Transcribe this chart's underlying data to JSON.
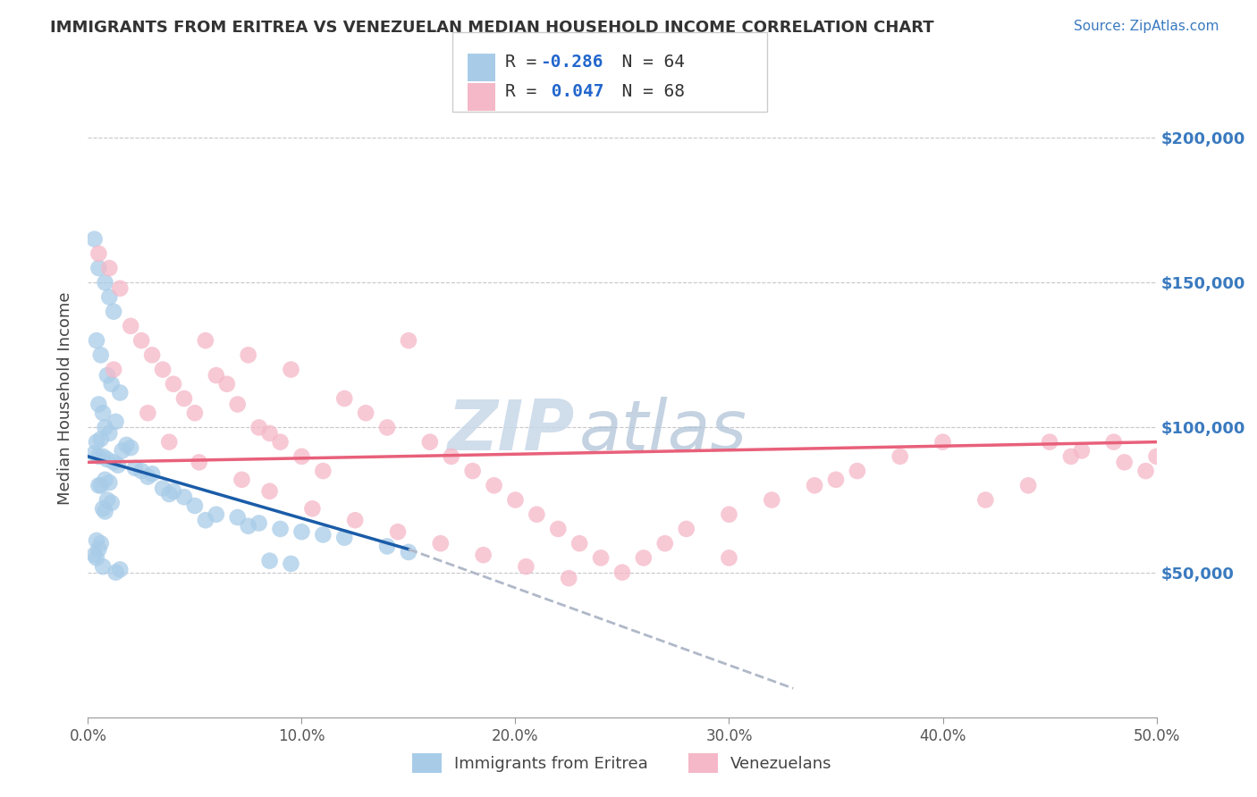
{
  "title": "IMMIGRANTS FROM ERITREA VS VENEZUELAN MEDIAN HOUSEHOLD INCOME CORRELATION CHART",
  "source": "Source: ZipAtlas.com",
  "ylabel": "Median Household Income",
  "watermark_zip": "ZIP",
  "watermark_atlas": "atlas",
  "blue_color": "#a8cce8",
  "pink_color": "#f5b8c8",
  "blue_line_color": "#1a5ca8",
  "pink_line_color": "#e8607a",
  "dashed_line_color": "#b0b8c8",
  "legend_entry1_r": "R = -0.286",
  "legend_entry1_n": "N = 64",
  "legend_entry2_r": "R =  0.047",
  "legend_entry2_n": "N = 68",
  "blue_scatter_x": [
    0.3,
    0.5,
    0.8,
    1.0,
    1.2,
    0.4,
    0.6,
    0.9,
    1.1,
    1.5,
    0.5,
    0.7,
    1.3,
    0.8,
    1.0,
    0.6,
    0.4,
    1.8,
    2.0,
    1.6,
    0.3,
    0.5,
    0.7,
    0.9,
    1.2,
    1.4,
    2.2,
    2.5,
    3.0,
    2.8,
    0.8,
    1.0,
    0.6,
    0.5,
    3.5,
    4.0,
    3.8,
    4.5,
    0.9,
    1.1,
    5.0,
    0.7,
    0.8,
    6.0,
    7.0,
    5.5,
    8.0,
    7.5,
    9.0,
    10.0,
    11.0,
    12.0,
    0.4,
    0.6,
    14.0,
    0.5,
    15.0,
    0.3,
    0.4,
    8.5,
    9.5,
    0.7,
    1.5,
    1.3
  ],
  "blue_scatter_y": [
    165000,
    155000,
    150000,
    145000,
    140000,
    130000,
    125000,
    118000,
    115000,
    112000,
    108000,
    105000,
    102000,
    100000,
    98000,
    96000,
    95000,
    94000,
    93000,
    92000,
    91000,
    90000,
    90000,
    89000,
    88000,
    87000,
    86000,
    85000,
    84000,
    83000,
    82000,
    81000,
    80000,
    80000,
    79000,
    78000,
    77000,
    76000,
    75000,
    74000,
    73000,
    72000,
    71000,
    70000,
    69000,
    68000,
    67000,
    66000,
    65000,
    64000,
    63000,
    62000,
    61000,
    60000,
    59000,
    58000,
    57000,
    56000,
    55000,
    54000,
    53000,
    52000,
    51000,
    50000
  ],
  "pink_scatter_x": [
    0.5,
    1.0,
    1.5,
    2.0,
    2.5,
    3.0,
    3.5,
    4.0,
    4.5,
    5.0,
    5.5,
    6.0,
    6.5,
    7.0,
    7.5,
    8.0,
    8.5,
    9.0,
    9.5,
    10.0,
    11.0,
    12.0,
    13.0,
    14.0,
    15.0,
    16.0,
    17.0,
    18.0,
    19.0,
    20.0,
    21.0,
    22.0,
    23.0,
    24.0,
    25.0,
    26.0,
    27.0,
    28.0,
    30.0,
    32.0,
    34.0,
    36.0,
    38.0,
    40.0,
    42.0,
    44.0,
    46.0,
    48.0,
    50.0,
    1.2,
    2.8,
    3.8,
    5.2,
    7.2,
    8.5,
    10.5,
    12.5,
    14.5,
    16.5,
    18.5,
    20.5,
    22.5,
    30.0,
    45.0,
    46.5,
    48.5,
    49.5,
    35.0
  ],
  "pink_scatter_y": [
    160000,
    155000,
    148000,
    135000,
    130000,
    125000,
    120000,
    115000,
    110000,
    105000,
    130000,
    118000,
    115000,
    108000,
    125000,
    100000,
    98000,
    95000,
    120000,
    90000,
    85000,
    110000,
    105000,
    100000,
    130000,
    95000,
    90000,
    85000,
    80000,
    75000,
    70000,
    65000,
    60000,
    55000,
    50000,
    55000,
    60000,
    65000,
    70000,
    75000,
    80000,
    85000,
    90000,
    95000,
    75000,
    80000,
    90000,
    95000,
    90000,
    120000,
    105000,
    95000,
    88000,
    82000,
    78000,
    72000,
    68000,
    64000,
    60000,
    56000,
    52000,
    48000,
    55000,
    95000,
    92000,
    88000,
    85000,
    82000
  ]
}
